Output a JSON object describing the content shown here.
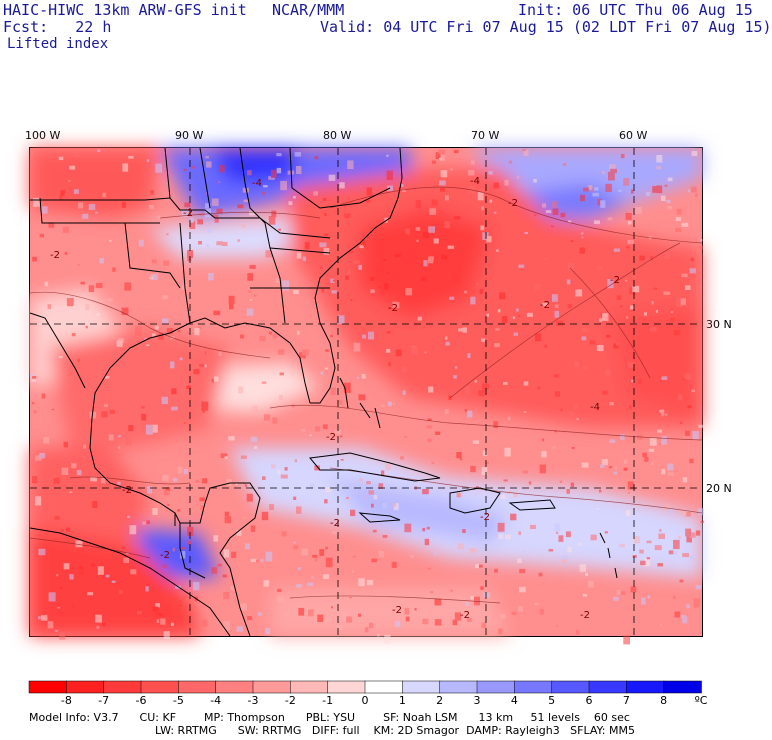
{
  "header": {
    "title": "HAIC-HIWC 13km ARW-GFS init",
    "agency": "NCAR/MMM",
    "init": "Init: 06 UTC Thu 06 Aug 15",
    "fcst": "Fcst:   22 h",
    "valid": "Valid: 04 UTC Fri 07 Aug 15 (02 LDT Fri 07 Aug 15)",
    "field": "Lifted index"
  },
  "map": {
    "lon_labels": [
      "100 W",
      "90 W",
      "80 W",
      "70 W",
      "60 W"
    ],
    "lat_labels": [
      "30 N",
      "20 N"
    ],
    "contour_labels": [
      "-2",
      "-2",
      "-2",
      "-4",
      "-2",
      "-2",
      "-2",
      "-2",
      "-2",
      "-2",
      "-2",
      "-2",
      "-2",
      "-2",
      "-4",
      "-4",
      "-2"
    ]
  },
  "colorbar": {
    "ticks": [
      "-8",
      "-7",
      "-6",
      "-5",
      "-4",
      "-3",
      "-2",
      "-1",
      "0",
      "1",
      "2",
      "3",
      "4",
      "5",
      "6",
      "7",
      "8"
    ],
    "unit": "ºC",
    "colors": [
      "#ff0000",
      "#ff2020",
      "#ff3a3a",
      "#ff5050",
      "#ff6868",
      "#ff8080",
      "#ff9a9a",
      "#ffb8b8",
      "#ffd6d6",
      "#ffffff",
      "#d8d8ff",
      "#b8b8ff",
      "#9898ff",
      "#7878ff",
      "#5858ff",
      "#3838ff",
      "#1818ff",
      "#0000e8"
    ]
  },
  "model_info": {
    "line1": "Model Info: V3.7      CU: KF        MP: Thompson      PBL: YSU        SF: Noah LSM      13 km     51 levels    60 sec",
    "line2": "LW: RRTMG      SW: RRTMG   DIFF: full    KM: 2D Smagor  DAMP: Rayleigh3   SFLAY: MM5"
  }
}
